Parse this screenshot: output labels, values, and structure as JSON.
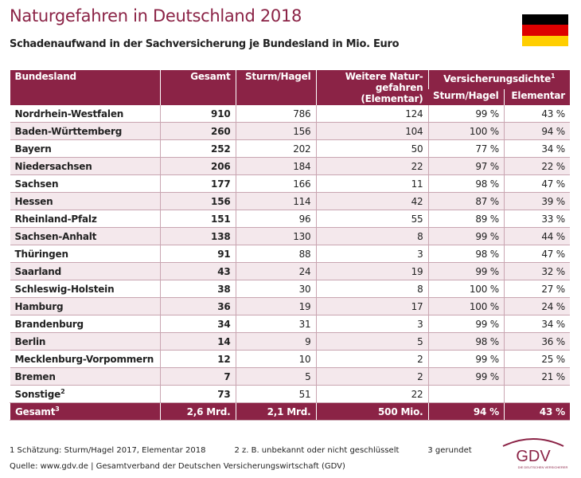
{
  "header": {
    "title": "Naturgefahren in Deutschland 2018",
    "subtitle": "Schadenaufwand in der Sachversicherung je Bundesland in Mio. Euro"
  },
  "table": {
    "columns": {
      "state": "Bundesland",
      "total": "Gesamt",
      "storm": "Sturm/Hagel",
      "other": [
        "Weitere Natur-",
        "gefahren (Elementar)"
      ],
      "density": "Versicherungsdichte",
      "density_note": "1",
      "density_storm": "Sturm/Hagel",
      "density_elementar": "Elementar"
    },
    "rows": [
      {
        "name": "Nordrhein-Westfalen",
        "cells": [
          "910",
          "786",
          "124",
          "99 %",
          "43 %"
        ]
      },
      {
        "name": "Baden-Württemberg",
        "cells": [
          "260",
          "156",
          "104",
          "100 %",
          "94 %"
        ]
      },
      {
        "name": "Bayern",
        "cells": [
          "252",
          "202",
          "50",
          "77 %",
          "34 %"
        ]
      },
      {
        "name": "Niedersachsen",
        "cells": [
          "206",
          "184",
          "22",
          "97 %",
          "22 %"
        ]
      },
      {
        "name": "Sachsen",
        "cells": [
          "177",
          "166",
          "11",
          "98 %",
          "47 %"
        ]
      },
      {
        "name": "Hessen",
        "cells": [
          "156",
          "114",
          "42",
          "87 %",
          "39 %"
        ]
      },
      {
        "name": "Rheinland-Pfalz",
        "cells": [
          "151",
          "96",
          "55",
          "89 %",
          "33 %"
        ]
      },
      {
        "name": "Sachsen-Anhalt",
        "cells": [
          "138",
          "130",
          "8",
          "99 %",
          "44 %"
        ]
      },
      {
        "name": "Thüringen",
        "cells": [
          "91",
          "88",
          "3",
          "98 %",
          "47 %"
        ]
      },
      {
        "name": "Saarland",
        "cells": [
          "43",
          "24",
          "19",
          "99 %",
          "32 %"
        ]
      },
      {
        "name": "Schleswig-Holstein",
        "cells": [
          "38",
          "30",
          "8",
          "100 %",
          "27 %"
        ]
      },
      {
        "name": "Hamburg",
        "cells": [
          "36",
          "19",
          "17",
          "100 %",
          "24 %"
        ]
      },
      {
        "name": "Brandenburg",
        "cells": [
          "34",
          "31",
          "3",
          "99 %",
          "34 %"
        ]
      },
      {
        "name": "Berlin",
        "cells": [
          "14",
          "9",
          "5",
          "98 %",
          "36 %"
        ]
      },
      {
        "name": "Mecklenburg-Vorpommern",
        "cells": [
          "12",
          "10",
          "2",
          "99 %",
          "25 %"
        ]
      },
      {
        "name": "Bremen",
        "cells": [
          "7",
          "5",
          "2",
          "99 %",
          "21 %"
        ]
      },
      {
        "name": "Sonstige",
        "sup": "2",
        "cells": [
          "73",
          "51",
          "22"
        ]
      }
    ],
    "total": {
      "name": "Gesamt",
      "sup": "3",
      "cells": [
        "2,6 Mrd.",
        "2,1 Mrd.",
        "500 Mio.",
        "94 %",
        "43 %"
      ]
    }
  },
  "footer": {
    "notes": [
      "1  Schätzung: Sturm/Hagel 2017, Elementar 2018",
      "2  z. B. unbekannt oder nicht geschlüsselt",
      "3  gerundet"
    ],
    "source": "Quelle: www.gdv.de | Gesamtverband der Deutschen Versicherungswirtschaft (GDV)"
  },
  "logo": {
    "name": "GDV",
    "tagline": "DIE DEUTSCHEN VERSICHERER"
  }
}
